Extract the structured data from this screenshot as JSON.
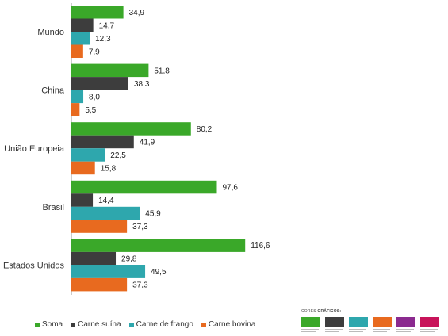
{
  "chart_data": {
    "type": "bar",
    "orientation": "horizontal",
    "categories": [
      "Mundo",
      "China",
      "União Europeia",
      "Brasil",
      "Estados Unidos"
    ],
    "series": [
      {
        "name": "Soma",
        "color": "#3aa829",
        "values": [
          34.9,
          51.8,
          80.2,
          97.6,
          116.6
        ],
        "labels": [
          "34,9",
          "51,8",
          "80,2",
          "97,6",
          "116,6"
        ]
      },
      {
        "name": "Carne suína",
        "color": "#3d3d3d",
        "values": [
          14.7,
          38.3,
          41.9,
          14.4,
          29.8
        ],
        "labels": [
          "14,7",
          "38,3",
          "41,9",
          "14,4",
          "29,8"
        ]
      },
      {
        "name": "Carne de frango",
        "color": "#2ea7ad",
        "values": [
          12.3,
          8.0,
          22.5,
          45.9,
          49.5
        ],
        "labels": [
          "12,3",
          "8,0",
          "22,5",
          "45,9",
          "49,5"
        ]
      },
      {
        "name": "Carne bovina",
        "color": "#e86a1f",
        "values": [
          7.9,
          5.5,
          15.8,
          37.3,
          37.3
        ],
        "labels": [
          "7,9",
          "5,5",
          "15,8",
          "37,3",
          "37,3"
        ]
      }
    ],
    "xlim": [
      0,
      120
    ],
    "grid": false,
    "legend_position": "bottom-left"
  },
  "palette": {
    "title_prefix": "CORES ",
    "title_bold": "GRÁFICOS:",
    "colors": [
      "#3aa829",
      "#3d3d3d",
      "#2ea7ad",
      "#e86a1f",
      "#8b2a8f",
      "#c8145a"
    ]
  }
}
